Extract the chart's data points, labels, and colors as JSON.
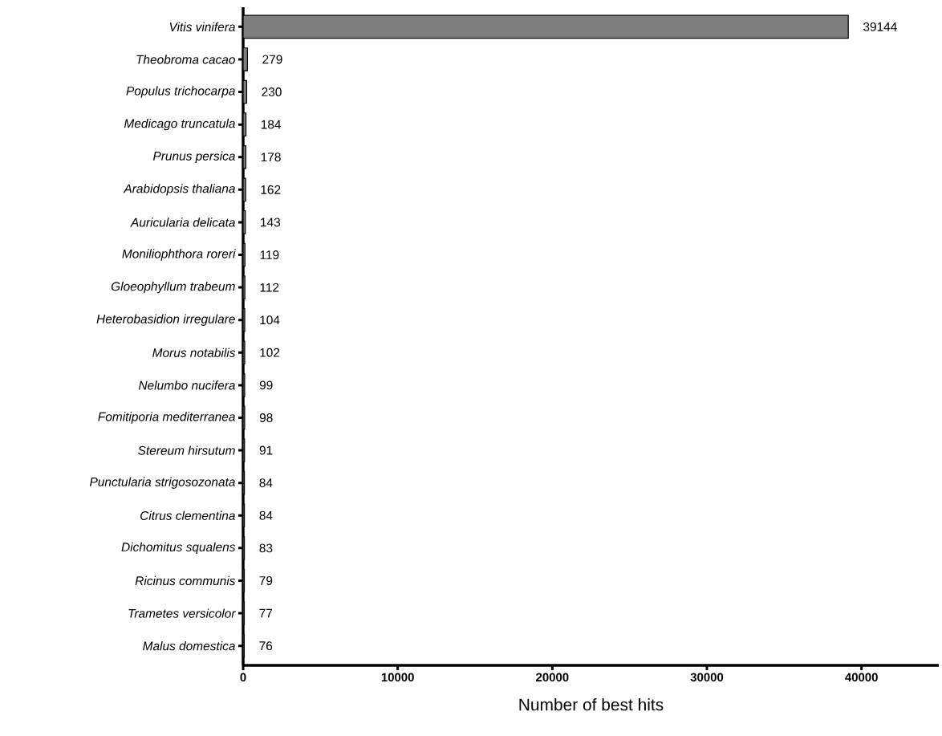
{
  "chart_data": {
    "type": "bar",
    "orientation": "horizontal",
    "xlabel": "Number of best hits",
    "categories": [
      "Vitis vinifera",
      "Theobroma cacao",
      "Populus trichocarpa",
      "Medicago truncatula",
      "Prunus persica",
      "Arabidopsis thaliana",
      "Auricularia delicata",
      "Moniliophthora roreri",
      "Gloeophyllum trabeum",
      "Heterobasidion irregulare",
      "Morus notabilis",
      "Nelumbo nucifera",
      "Fomitiporia mediterranea",
      "Stereum hirsutum",
      "Punctularia strigosozonata",
      "Citrus clementina",
      "Dichomitus squalens",
      "Ricinus communis",
      "Trametes versicolor",
      "Malus domestica"
    ],
    "values": [
      39144,
      279,
      230,
      184,
      178,
      162,
      143,
      119,
      112,
      104,
      102,
      99,
      98,
      91,
      84,
      84,
      83,
      79,
      77,
      76
    ],
    "color": "#7f7f7f",
    "xlim": [
      0,
      45000
    ],
    "xticks": [
      0,
      10000,
      20000,
      30000,
      40000
    ],
    "data_labels": true
  }
}
